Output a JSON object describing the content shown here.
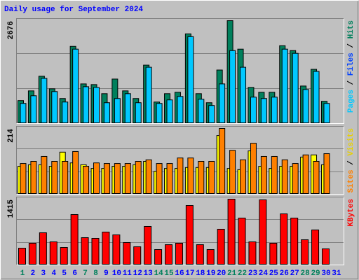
{
  "chart_data": [
    {
      "type": "bar",
      "title": "Daily usage for September 2024",
      "ylim": [
        0,
        2676
      ],
      "yticks": [
        2676
      ],
      "legend": [
        {
          "name": "Pages",
          "color": "#00c8ff"
        },
        {
          "name": "Files",
          "color": "#0040ff"
        },
        {
          "name": "Hits",
          "color": "#00805c"
        }
      ],
      "legend_separator": " / ",
      "series": [
        {
          "color": "#00805c",
          "values": [
            597,
            850,
            1230,
            904,
            651,
            2007,
            1031,
            1013,
            777,
            1157,
            850,
            651,
            1519,
            560,
            777,
            814,
            2333,
            777,
            542,
            1392,
            2676,
            1935,
            940,
            814,
            814,
            2025,
            1898,
            976,
            1410,
            579,
            null
          ]
        },
        {
          "color": "#00c8ff",
          "values": [
            524,
            723,
            1175,
            832,
            560,
            1935,
            958,
            940,
            542,
            651,
            777,
            542,
            1464,
            524,
            615,
            705,
            2260,
            633,
            470,
            1031,
            1898,
            1464,
            687,
            651,
            687,
            1935,
            1826,
            886,
            1356,
            524,
            null
          ]
        }
      ]
    },
    {
      "type": "bar",
      "ylim": [
        0,
        214
      ],
      "yticks": [
        214
      ],
      "legend": [
        {
          "name": "Sites",
          "color": "#ff8000"
        },
        {
          "name": "Visits",
          "color": "#e8d000"
        }
      ],
      "legend_separator": " / ",
      "series": [
        {
          "color": "#ffff00",
          "values": [
            91,
            96,
            96,
            91,
            137,
            102,
            96,
            84,
            84,
            91,
            91,
            96,
            107,
            75,
            84,
            84,
            87,
            87,
            87,
            191,
            84,
            80,
            141,
            91,
            84,
            91,
            91,
            121,
            128,
            96,
            null
          ]
        },
        {
          "color": "#ff8000",
          "values": [
            100,
            107,
            123,
            107,
            107,
            139,
            91,
            102,
            100,
            100,
            100,
            107,
            112,
            100,
            100,
            118,
            118,
            107,
            107,
            214,
            143,
            112,
            166,
            123,
            123,
            112,
            100,
            128,
            107,
            132,
            null
          ]
        }
      ]
    },
    {
      "type": "bar",
      "ylim": [
        0,
        1415
      ],
      "yticks": [
        1415
      ],
      "legend": [
        {
          "name": "KBytes",
          "color": "#ff0000"
        }
      ],
      "series": [
        {
          "color": "#ff0000",
          "values": [
            361,
            467,
            692,
            497,
            376,
            1084,
            587,
            572,
            707,
            647,
            482,
            391,
            828,
            331,
            436,
            467,
            1279,
            436,
            331,
            768,
            1415,
            1008,
            497,
            1400,
            467,
            1099,
            1008,
            542,
            753,
            346,
            null
          ]
        }
      ],
      "categories": [
        "1",
        "2",
        "3",
        "4",
        "5",
        "6",
        "7",
        "8",
        "9",
        "10",
        "11",
        "12",
        "13",
        "14",
        "15",
        "16",
        "17",
        "18",
        "19",
        "20",
        "21",
        "22",
        "23",
        "24",
        "25",
        "26",
        "27",
        "28",
        "29",
        "30",
        "31"
      ],
      "category_colors": [
        "#00805c",
        "#0000ff",
        "#0000ff",
        "#0000ff",
        "#0000ff",
        "#0000ff",
        "#00805c",
        "#00805c",
        "#0000ff",
        "#0000ff",
        "#0000ff",
        "#0000ff",
        "#0000ff",
        "#00805c",
        "#00805c",
        "#0000ff",
        "#0000ff",
        "#0000ff",
        "#0000ff",
        "#0000ff",
        "#00805c",
        "#00805c",
        "#0000ff",
        "#0000ff",
        "#0000ff",
        "#0000ff",
        "#0000ff",
        "#00805c",
        "#00805c",
        "#0000ff",
        "#0000ff"
      ]
    }
  ]
}
